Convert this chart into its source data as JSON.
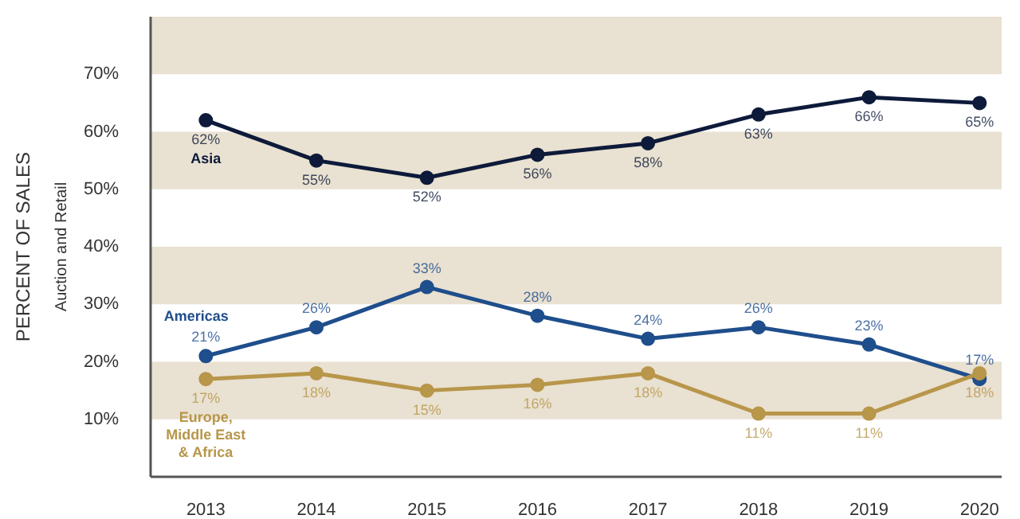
{
  "chart_data": {
    "type": "line",
    "ylabel": "PERCENT OF SALES",
    "subtitle": "Auction and Retail",
    "categories": [
      "2013",
      "2014",
      "2015",
      "2016",
      "2017",
      "2018",
      "2019",
      "2020"
    ],
    "series": [
      {
        "name": "Asia",
        "color": "#0d1a3a",
        "values": [
          62,
          55,
          52,
          56,
          58,
          63,
          66,
          65
        ],
        "value_labels": [
          "62%",
          "55%",
          "52%",
          "56%",
          "58%",
          "63%",
          "66%",
          "65%"
        ]
      },
      {
        "name": "Americas",
        "color": "#1f4e8c",
        "values": [
          21,
          26,
          33,
          28,
          24,
          26,
          23,
          17
        ],
        "value_labels": [
          "21%",
          "26%",
          "33%",
          "28%",
          "24%",
          "26%",
          "23%",
          "17%"
        ]
      },
      {
        "name": "Europe, Middle East & Africa",
        "color": "#b8964a",
        "values": [
          17,
          18,
          15,
          16,
          18,
          11,
          11,
          18
        ],
        "value_labels": [
          "17%",
          "18%",
          "15%",
          "16%",
          "18%",
          "11%",
          "11%",
          "18%"
        ]
      }
    ],
    "ylim": [
      0,
      80
    ],
    "yticks": [
      {
        "value": 10,
        "label": "10%"
      },
      {
        "value": 20,
        "label": "20%"
      },
      {
        "value": 30,
        "label": "30%"
      },
      {
        "value": 40,
        "label": "40%"
      },
      {
        "value": 50,
        "label": "50%"
      },
      {
        "value": 60,
        "label": "60%"
      },
      {
        "value": 70,
        "label": "70%"
      }
    ],
    "bands": [
      {
        "axis": "y",
        "from": 10,
        "to": 20,
        "color": "#e9e1d1"
      },
      {
        "axis": "y",
        "from": 30,
        "to": 40,
        "color": "#e9e1d1"
      },
      {
        "axis": "y",
        "from": 50,
        "to": 60,
        "color": "#e9e1d1"
      },
      {
        "axis": "y",
        "from": 70,
        "to": 80,
        "color": "#e9e1d1"
      }
    ],
    "marker": "circle",
    "line_style": "solid",
    "grid": false
  }
}
